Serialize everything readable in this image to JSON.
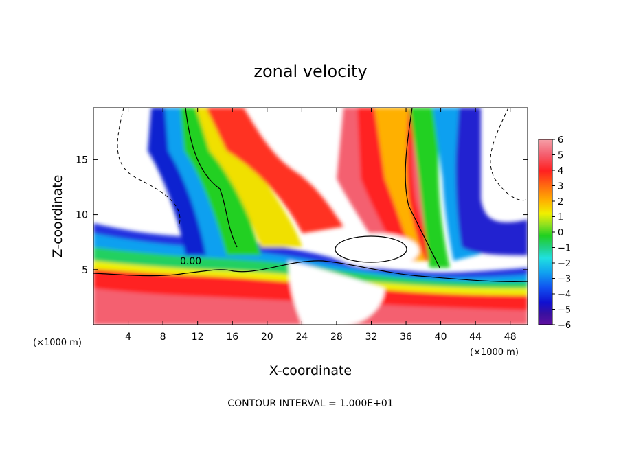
{
  "chart_data": {
    "type": "heatmap",
    "title": "zonal velocity",
    "xlabel": "X-coordinate",
    "ylabel": "Z-coordinate",
    "x_unit": "(×1000 m)",
    "y_unit": "(×1000 m)",
    "xlim": [
      0,
      50
    ],
    "ylim": [
      0,
      19.7
    ],
    "x_ticks": [
      4,
      8,
      12,
      16,
      20,
      24,
      28,
      32,
      36,
      40,
      44,
      48
    ],
    "y_ticks": [
      5,
      10,
      15
    ],
    "colorbar": {
      "ticks": [
        6,
        5,
        4,
        3,
        2,
        1,
        0,
        -1,
        -2,
        -3,
        -4,
        -5,
        -6
      ],
      "range": [
        -6,
        6
      ]
    },
    "contour_interval_text": "CONTOUR INTERVAL = 1.000E+01",
    "contour_label": "0.00"
  }
}
